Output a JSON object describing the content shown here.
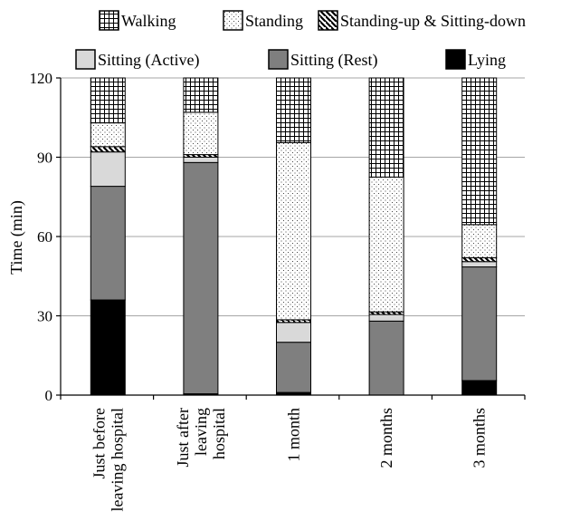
{
  "chart_data": {
    "type": "bar",
    "stacked": true,
    "title": "",
    "xlabel": "",
    "ylabel": "Time (min)",
    "ylim": [
      0,
      120
    ],
    "yticks": [
      0,
      30,
      60,
      90,
      120
    ],
    "grid": true,
    "legend_position": "top",
    "categories": [
      "Just before leaving hospital",
      "Just after leaving hospital",
      "1 month",
      "2 months",
      "3 months"
    ],
    "category_lines": [
      [
        "Just before",
        "leaving hospital"
      ],
      [
        "Just after",
        "leaving",
        "hospital"
      ],
      [
        "1 month"
      ],
      [
        "2 months"
      ],
      [
        "3 months"
      ]
    ],
    "series": [
      {
        "name": "Lying",
        "pattern": "solid-black",
        "values": [
          36,
          0.5,
          1,
          0,
          5.5
        ]
      },
      {
        "name": "Sitting (Rest)",
        "pattern": "dark-gray",
        "values": [
          43,
          87.5,
          19,
          28,
          43
        ]
      },
      {
        "name": "Sitting (Active)",
        "pattern": "light-gray",
        "values": [
          13,
          2,
          7.5,
          2.5,
          2
        ]
      },
      {
        "name": "Standing-up & Sitting-down",
        "pattern": "diagonal-stripes",
        "values": [
          2,
          1,
          1,
          1,
          1.5
        ]
      },
      {
        "name": "Standing",
        "pattern": "dots",
        "values": [
          9,
          16,
          67,
          51,
          12.5
        ]
      },
      {
        "name": "Walking",
        "pattern": "grid",
        "values": [
          17,
          13,
          24.5,
          37.5,
          55.5
        ]
      }
    ]
  }
}
